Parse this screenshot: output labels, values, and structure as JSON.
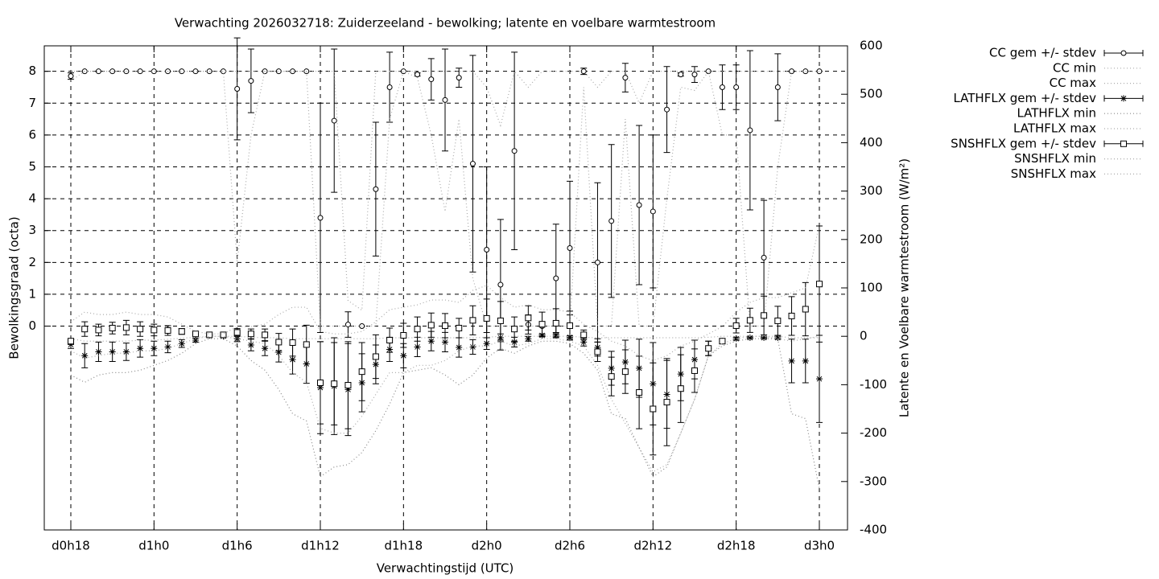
{
  "chart_data": {
    "type": "errorbar-line",
    "title": "Verwachting 2026032718: Zuiderzeeland - bewolking; latente en voelbare warmtestroom",
    "x_label": "Verwachtingstijd (UTC)",
    "y_label": "Bewolkingsgraad (octa)",
    "y2_label": "Latente en Voelbare warmtestroom (W/m²)",
    "categories": [
      "d0h18",
      null,
      null,
      null,
      null,
      null,
      "d1h0",
      null,
      null,
      null,
      null,
      null,
      "d1h6",
      null,
      null,
      null,
      null,
      null,
      "d1h12",
      null,
      null,
      null,
      null,
      null,
      "d1h18",
      null,
      null,
      null,
      null,
      null,
      "d2h0",
      null,
      null,
      null,
      null,
      null,
      "d2h6",
      null,
      null,
      null,
      null,
      null,
      "d2h12",
      null,
      null,
      null,
      null,
      null,
      "d2h18",
      null,
      null,
      null,
      null,
      null,
      "d3h0"
    ],
    "ylim": [
      -6.4,
      8.8
    ],
    "yticks": [
      0,
      1,
      2,
      3,
      4,
      5,
      6,
      7,
      8
    ],
    "y2lim": [
      -400,
      600
    ],
    "y2ticks": [
      -400,
      -300,
      -200,
      -100,
      0,
      100,
      200,
      300,
      400,
      500,
      600
    ],
    "grid": true,
    "legend": "outside-right-top",
    "series": [
      {
        "name": "CC gem +/- stdev",
        "color": "#000000",
        "style": "errorbars",
        "marker": "circle",
        "values": [
          7.85,
          8,
          8,
          8,
          8,
          8,
          8,
          8,
          8,
          8,
          8,
          8,
          7.45,
          7.7,
          8,
          8,
          8,
          8,
          3.4,
          6.45,
          0.05,
          0,
          4.3,
          7.5,
          8,
          7.9,
          7.75,
          7.1,
          7.8,
          5.1,
          2.4,
          1.3,
          5.5,
          0.05,
          0,
          1.5,
          2.45,
          8,
          2,
          3.3,
          7.8,
          3.8,
          3.6,
          6.8,
          7.9,
          7.9,
          8,
          7.5,
          7.5,
          6.15,
          2.15,
          7.5,
          8,
          8,
          8
        ],
        "errors": [
          0.1,
          0,
          0,
          0,
          0,
          0,
          0,
          0,
          0,
          0,
          0,
          0,
          1.6,
          1,
          0,
          0,
          0,
          0,
          3.6,
          2.25,
          0.4,
          0,
          2.1,
          1.1,
          0,
          0.05,
          0.65,
          1.6,
          0.3,
          3.4,
          2.6,
          2.05,
          3.1,
          0.3,
          0,
          1.7,
          2.1,
          0.1,
          2.5,
          2.4,
          0.45,
          2.5,
          2.4,
          1.35,
          0.05,
          0.25,
          0,
          0.7,
          0.7,
          2.5,
          1.8,
          1.05,
          0,
          0,
          0
        ]
      },
      {
        "name": "CC min",
        "color": "#aaaaaa",
        "style": "dotted",
        "values": [
          7.7,
          8,
          8,
          8,
          8,
          8,
          8,
          8,
          8,
          8,
          8,
          8,
          2,
          6,
          8,
          8,
          8,
          8,
          0,
          0,
          0,
          0,
          0,
          6.5,
          8,
          7.8,
          6,
          3.6,
          6.5,
          1.5,
          0,
          0,
          0,
          0,
          0,
          0,
          0,
          7.5,
          0,
          0,
          6.5,
          0,
          0,
          4,
          7.5,
          7.4,
          8,
          6,
          6,
          0,
          0,
          5,
          8,
          8,
          8
        ]
      },
      {
        "name": "CC max",
        "color": "#aaaaaa",
        "style": "dotted",
        "values": [
          8,
          8,
          8,
          8,
          8,
          8,
          8,
          8,
          8,
          8,
          8,
          8,
          8,
          8,
          8,
          8,
          8,
          8,
          8,
          8,
          0.8,
          0.5,
          8,
          8,
          8,
          8,
          8,
          8,
          8,
          8,
          7.5,
          6.3,
          8,
          7.5,
          8,
          8,
          8,
          8,
          7.5,
          8,
          8,
          7,
          8,
          8,
          8,
          8,
          8,
          8,
          8,
          8,
          8,
          8,
          8,
          8,
          8
        ]
      },
      {
        "name": "LATHFLX gem +/- stdev",
        "color": "#000000",
        "style": "errorbars",
        "marker": "star",
        "axis": "y2",
        "values": [
          -17,
          -40,
          -32,
          -32,
          -32,
          -25,
          -25,
          -22,
          -15,
          -8,
          2,
          0,
          -5,
          -18,
          -25,
          -33,
          -48,
          -57,
          -106,
          -103,
          -110,
          -96,
          -58,
          -27,
          -40,
          -22,
          -10,
          -12,
          -23,
          -22,
          -15,
          -3,
          -12,
          -5,
          2,
          2,
          -2,
          -12,
          -23,
          -66,
          -53,
          -66,
          -98,
          -120,
          -78,
          -48,
          -25,
          -10,
          -5,
          -3,
          -3,
          -3,
          -51,
          -51,
          -88
        ],
        "errors": [
          8,
          25,
          20,
          20,
          18,
          18,
          15,
          12,
          8,
          4,
          2,
          2,
          6,
          12,
          15,
          20,
          30,
          40,
          95,
          100,
          95,
          60,
          40,
          25,
          25,
          20,
          20,
          20,
          20,
          15,
          12,
          8,
          10,
          5,
          3,
          3,
          3,
          8,
          18,
          35,
          45,
          60,
          85,
          70,
          55,
          40,
          15,
          5,
          3,
          2,
          2,
          3,
          45,
          45,
          90
        ]
      },
      {
        "name": "LATHFLX min",
        "color": "#888888",
        "style": "dotted",
        "axis": "y2",
        "values": [
          -80,
          -95,
          -80,
          -75,
          -75,
          -70,
          -60,
          -50,
          -35,
          -15,
          -5,
          -5,
          -20,
          -50,
          -70,
          -110,
          -160,
          -175,
          -290,
          -270,
          -265,
          -240,
          -195,
          -140,
          -75,
          -70,
          -65,
          -80,
          -100,
          -80,
          -45,
          -25,
          -35,
          -20,
          -10,
          -10,
          -15,
          -35,
          -70,
          -160,
          -170,
          -230,
          -290,
          -270,
          -200,
          -130,
          -40,
          -20,
          -10,
          -5,
          -5,
          -5,
          -160,
          -170,
          -315
        ]
      },
      {
        "name": "LATHFLX max",
        "color": "#aaaaaa",
        "style": "dotted",
        "axis": "y2",
        "values": [
          -5,
          -10,
          -10,
          -10,
          -10,
          -8,
          -8,
          -6,
          -4,
          -2,
          0,
          0,
          0,
          -2,
          -3,
          -3,
          -5,
          -5,
          -5,
          -5,
          -5,
          -5,
          -5,
          -3,
          -3,
          -3,
          -3,
          -3,
          -3,
          -3,
          -2,
          0,
          0,
          0,
          0,
          0,
          0,
          -2,
          -3,
          -3,
          -3,
          -3,
          -3,
          -3,
          -3,
          -3,
          -2,
          0,
          0,
          0,
          0,
          0,
          -3,
          -3,
          -3
        ]
      },
      {
        "name": "SNSHFLX gem +/- stdev",
        "color": "#000000",
        "style": "errorbars",
        "marker": "square",
        "axis": "y2",
        "values": [
          -10,
          15,
          13,
          17,
          18,
          15,
          13,
          12,
          10,
          5,
          3,
          3,
          8,
          5,
          3,
          -12,
          -13,
          -17,
          -96,
          -98,
          -101,
          -73,
          -42,
          -8,
          2,
          15,
          23,
          22,
          17,
          33,
          37,
          32,
          15,
          38,
          25,
          27,
          22,
          3,
          -32,
          -83,
          -73,
          -116,
          -150,
          -136,
          -108,
          -71,
          -25,
          -10,
          22,
          33,
          43,
          32,
          42,
          56,
          108
        ],
        "errors": [
          5,
          15,
          12,
          12,
          15,
          15,
          12,
          10,
          6,
          4,
          2,
          2,
          8,
          10,
          12,
          18,
          28,
          40,
          85,
          85,
          90,
          60,
          45,
          25,
          25,
          25,
          25,
          25,
          20,
          30,
          40,
          40,
          25,
          25,
          25,
          30,
          30,
          10,
          20,
          40,
          45,
          75,
          95,
          90,
          70,
          45,
          15,
          5,
          15,
          25,
          40,
          30,
          40,
          55,
          120
        ]
      },
      {
        "name": "SNSHFLX min",
        "color": "#aaaaaa",
        "style": "dotted",
        "axis": "y2",
        "values": [
          -30,
          -45,
          -40,
          -35,
          -35,
          -30,
          -30,
          -25,
          -15,
          -5,
          0,
          0,
          -5,
          -10,
          -15,
          -40,
          -75,
          -95,
          -190,
          -200,
          -200,
          -165,
          -120,
          -75,
          -75,
          -60,
          -60,
          -50,
          -30,
          -20,
          -20,
          -10,
          -20,
          -15,
          -5,
          -5,
          -10,
          -20,
          -60,
          -130,
          -180,
          -230,
          -280,
          -265,
          -200,
          -130,
          -40,
          -15,
          -5,
          0,
          0,
          -5,
          -10,
          -5,
          0
        ]
      },
      {
        "name": "SNSHFLX max",
        "color": "#aaaaaa",
        "style": "dotted",
        "axis": "y2",
        "values": [
          30,
          50,
          45,
          45,
          50,
          45,
          45,
          40,
          25,
          10,
          5,
          5,
          20,
          20,
          25,
          45,
          60,
          60,
          10,
          5,
          5,
          10,
          30,
          55,
          60,
          65,
          75,
          75,
          70,
          95,
          105,
          80,
          60,
          65,
          55,
          55,
          50,
          25,
          10,
          -10,
          -20,
          -40,
          -50,
          -40,
          -20,
          -10,
          5,
          20,
          50,
          70,
          80,
          80,
          90,
          100,
          230
        ]
      }
    ]
  }
}
